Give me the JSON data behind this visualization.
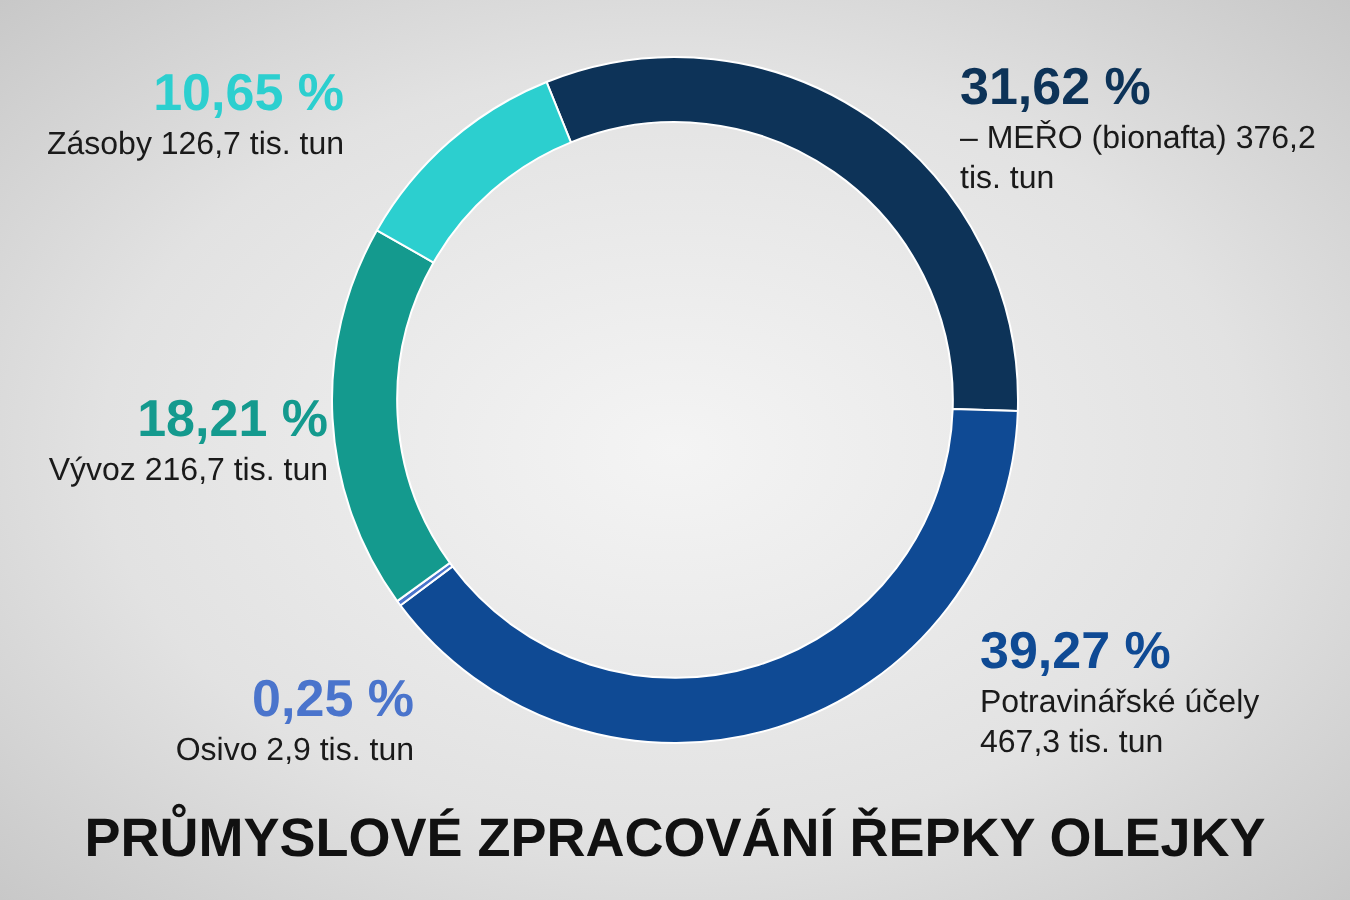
{
  "chart_data": {
    "type": "donut",
    "title": "PRŮMYSLOVÉ ZPRACOVÁNÍ ŘEPKY OLEJKY",
    "categories": [
      "– MEŘO (bionafta) 376,2 tis. tun",
      "Potravinářské účely 467,3 tis. tun",
      "Osivo 2,9 tis. tun",
      "Vývoz 216,7 tis. tun",
      "Zásoby 126,7 tis. tun"
    ],
    "values": [
      31.62,
      39.27,
      0.25,
      18.21,
      10.65
    ],
    "value_labels": [
      "31,62 %",
      "39,27 %",
      "0,25 %",
      "18,21 %",
      "10,65 %"
    ],
    "colors": [
      "#0d3358",
      "#0f4a94",
      "#4a74cc",
      "#149a8e",
      "#2ccfcf"
    ],
    "legend": false
  }
}
